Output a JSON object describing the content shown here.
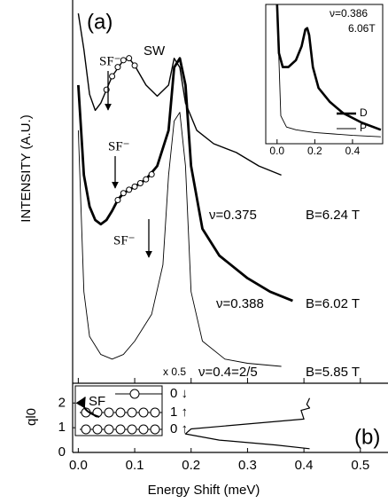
{
  "chart_data": [
    {
      "type": "line",
      "panel_label": "(a)",
      "ylabel": "INTENSITY (A.U.)",
      "xlim": [
        -0.01,
        0.549
      ],
      "ylim": [
        0,
        100
      ],
      "legend": false,
      "annotations": [
        "SW",
        "SF⁻",
        "SF⁻",
        "SF⁻"
      ],
      "series": [
        {
          "name": "ν=0.375",
          "field": "B=6.24 T",
          "color": "#000000",
          "line_width": 1.4,
          "x": [
            0.0,
            0.01,
            0.02,
            0.03,
            0.04,
            0.05,
            0.06,
            0.08,
            0.09,
            0.1,
            0.12,
            0.14,
            0.16,
            0.17,
            0.18,
            0.19,
            0.21,
            0.24,
            0.28,
            0.32,
            0.36
          ],
          "values": [
            96.5,
            87.1,
            75.4,
            71.2,
            73.1,
            76.6,
            80.1,
            84.3,
            84.8,
            82.9,
            77.8,
            74.9,
            77.8,
            84.8,
            82.4,
            73.1,
            66.0,
            62.5,
            60.2,
            56.7,
            54.3
          ]
        },
        {
          "marker": "circle",
          "color": "#000000",
          "x": [
            0.05,
            0.06,
            0.07,
            0.08,
            0.09,
            0.1
          ],
          "values": [
            76.6,
            80.1,
            82.5,
            84.3,
            84.8,
            82.9
          ]
        },
        {
          "name": "ν=0.388",
          "field": "B=6.02 T",
          "color": "#000000",
          "line_width": 2.8,
          "x": [
            0.0,
            0.01,
            0.02,
            0.03,
            0.04,
            0.05,
            0.06,
            0.07,
            0.08,
            0.1,
            0.12,
            0.14,
            0.16,
            0.17,
            0.18,
            0.19,
            0.2,
            0.22,
            0.25,
            0.3,
            0.34,
            0.38
          ],
          "values": [
            77.8,
            54.3,
            46.1,
            42.6,
            41.5,
            42.6,
            45.0,
            47.8,
            49.6,
            51.3,
            53.2,
            56.7,
            66.0,
            82.4,
            84.8,
            77.8,
            56.7,
            40.3,
            33.3,
            27.4,
            23.9,
            21.5
          ]
        },
        {
          "marker": "circle",
          "color": "#000000",
          "x": [
            0.07,
            0.08,
            0.09,
            0.1,
            0.11,
            0.12,
            0.13
          ],
          "values": [
            47.8,
            49.6,
            50.5,
            51.3,
            52.2,
            53.2,
            54.5
          ]
        },
        {
          "name": "ν=0.4=2/5",
          "field": "B=5.85 T",
          "note": "x 0.5",
          "color": "#000000",
          "line_width": 0.9,
          "x": [
            0.0,
            0.01,
            0.02,
            0.04,
            0.06,
            0.08,
            0.1,
            0.13,
            0.15,
            0.16,
            0.17,
            0.18,
            0.19,
            0.2,
            0.22,
            0.26,
            0.3,
            0.36
          ],
          "values": [
            66.0,
            23.9,
            12.2,
            7.5,
            6.3,
            7.5,
            11.0,
            18.0,
            30.9,
            54.3,
            68.4,
            70.7,
            56.7,
            23.9,
            11.0,
            6.3,
            5.2,
            4.4
          ]
        }
      ]
    },
    {
      "type": "line",
      "title": "ν=0.386",
      "subtitle": "6.06T",
      "xlim": [
        -0.06,
        0.56
      ],
      "ylim": [
        0,
        100
      ],
      "legend": "upper right",
      "xticks": [
        {
          "value": 0,
          "label": "0.0"
        },
        0.2,
        0.4
      ],
      "series": [
        {
          "name": "D",
          "color": "#000000",
          "line_width": 2.6,
          "x": [
            0.0,
            0.01,
            0.03,
            0.06,
            0.1,
            0.13,
            0.15,
            0.16,
            0.17,
            0.19,
            0.22,
            0.28,
            0.35,
            0.45,
            0.55
          ],
          "values": [
            100,
            65,
            55,
            55,
            60,
            70,
            82,
            83,
            78,
            55,
            40,
            30,
            22,
            15,
            10
          ]
        },
        {
          "name": "P",
          "color": "#000000",
          "line_width": 0.9,
          "x": [
            0.0,
            0.02,
            0.05,
            0.1,
            0.15,
            0.2,
            0.3,
            0.4,
            0.55
          ],
          "values": [
            100,
            20,
            12,
            10,
            9,
            8,
            7,
            6,
            5
          ]
        }
      ]
    },
    {
      "type": "line",
      "panel_label": "(b)",
      "ylabel": "ql0",
      "xlabel": "Energy Shift (meV)",
      "xlim": [
        -0.01,
        0.549
      ],
      "ylim": [
        0,
        2.8
      ],
      "legend": false,
      "xticks": [
        {
          "value": 0,
          "label": "0.0"
        },
        0.1,
        0.2,
        0.3,
        0.4,
        0.5
      ],
      "yticks": [
        0,
        1,
        2
      ],
      "diagram": {
        "transition": "SF",
        "levels": [
          "0 ↓",
          "1 ↑",
          "0 ↑"
        ]
      },
      "series": [
        {
          "color": "#000000",
          "line_width": 1.2,
          "x": [
            0.41,
            0.405,
            0.41,
            0.395,
            0.4,
            0.2,
            0.19,
            0.25,
            0.35,
            0.41
          ],
          "values": [
            2.2,
            1.95,
            1.8,
            1.7,
            1.35,
            0.95,
            0.75,
            0.5,
            0.3,
            0.15
          ]
        }
      ]
    }
  ]
}
